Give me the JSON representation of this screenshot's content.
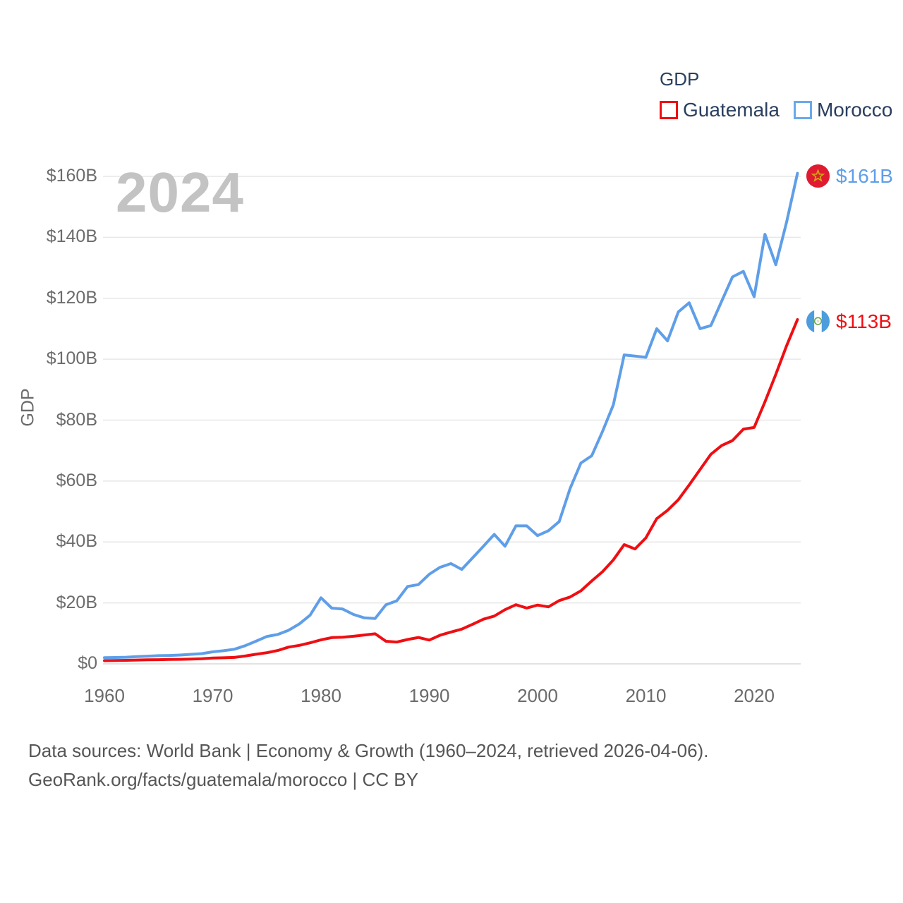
{
  "legend": {
    "title": "GDP",
    "items": [
      {
        "label": "Guatemala",
        "color": "#ef0e12"
      },
      {
        "label": "Morocco",
        "color": "#5f9ee8"
      }
    ]
  },
  "watermark": "2024",
  "y_axis": {
    "title": "GDP",
    "tick_values": [
      0,
      20,
      40,
      60,
      80,
      100,
      120,
      140,
      160
    ],
    "tick_labels": [
      "$0",
      "$20B",
      "$40B",
      "$60B",
      "$80B",
      "$100B",
      "$120B",
      "$140B",
      "$160B"
    ]
  },
  "x_axis": {
    "tick_values": [
      1960,
      1970,
      1980,
      1990,
      2000,
      2010,
      2020
    ],
    "tick_labels": [
      "1960",
      "1970",
      "1980",
      "1990",
      "2000",
      "2010",
      "2020"
    ]
  },
  "end_labels": {
    "morocco": {
      "value": "$161B",
      "flag": "morocco-flag"
    },
    "guatemala": {
      "value": "$113B",
      "flag": "guatemala-flag"
    }
  },
  "footer": {
    "line1": "Data sources: World Bank | Economy & Growth (1960–2024, retrieved 2026-04-06).",
    "line2": "GeoRank.org/facts/guatemala/morocco | CC BY"
  },
  "chart_data": {
    "type": "line",
    "title": "GDP",
    "xlabel": "",
    "ylabel": "GDP",
    "unit": "billion US$",
    "ylim": [
      0,
      160
    ],
    "xlim": [
      1960,
      2024
    ],
    "grid": "horizontal",
    "legend_position": "top-right",
    "x": [
      1960,
      1961,
      1962,
      1963,
      1964,
      1965,
      1966,
      1967,
      1968,
      1969,
      1970,
      1971,
      1972,
      1973,
      1974,
      1975,
      1976,
      1977,
      1978,
      1979,
      1980,
      1981,
      1982,
      1983,
      1984,
      1985,
      1986,
      1987,
      1988,
      1989,
      1990,
      1991,
      1992,
      1993,
      1994,
      1995,
      1996,
      1997,
      1998,
      1999,
      2000,
      2001,
      2002,
      2003,
      2004,
      2005,
      2006,
      2007,
      2008,
      2009,
      2010,
      2011,
      2012,
      2013,
      2014,
      2015,
      2016,
      2017,
      2018,
      2019,
      2020,
      2021,
      2022,
      2023,
      2024
    ],
    "series": [
      {
        "name": "Guatemala",
        "color": "#ef0e12",
        "end_value_label": "$113B",
        "values": [
          1.04,
          1.09,
          1.15,
          1.24,
          1.31,
          1.37,
          1.43,
          1.49,
          1.58,
          1.69,
          1.9,
          1.98,
          2.1,
          2.57,
          3.16,
          3.65,
          4.37,
          5.48,
          6.07,
          6.9,
          7.88,
          8.61,
          8.72,
          9.05,
          9.47,
          9.87,
          7.4,
          7.16,
          7.99,
          8.66,
          7.8,
          9.41,
          10.44,
          11.4,
          12.98,
          14.66,
          15.67,
          17.79,
          19.4,
          18.32,
          19.29,
          18.7,
          20.78,
          21.92,
          23.97,
          27.21,
          30.23,
          34.11,
          39.14,
          37.73,
          41.34,
          47.65,
          50.39,
          53.85,
          58.72,
          63.77,
          68.76,
          71.64,
          73.28,
          77.02,
          77.6,
          86.0,
          95.0,
          104.4,
          113.0
        ]
      },
      {
        "name": "Morocco",
        "color": "#5f9ee8",
        "end_value_label": "$161B",
        "values": [
          2.04,
          2.09,
          2.17,
          2.39,
          2.52,
          2.69,
          2.76,
          2.89,
          3.12,
          3.35,
          3.93,
          4.3,
          4.8,
          5.94,
          7.44,
          8.98,
          9.63,
          11.0,
          13.1,
          16.0,
          21.7,
          18.3,
          18.0,
          16.2,
          15.1,
          14.9,
          19.4,
          20.7,
          25.4,
          26.0,
          29.4,
          31.7,
          32.9,
          31.0,
          34.8,
          38.6,
          42.5,
          38.6,
          45.3,
          45.3,
          42.1,
          43.7,
          46.7,
          57.5,
          65.9,
          68.3,
          76.3,
          85.0,
          101.4,
          101.0,
          100.6,
          110.0,
          106.0,
          115.5,
          118.5,
          110.0,
          111.0,
          119.0,
          127.0,
          128.8,
          120.5,
          141.0,
          131.0,
          145.0,
          161.0
        ]
      }
    ]
  }
}
